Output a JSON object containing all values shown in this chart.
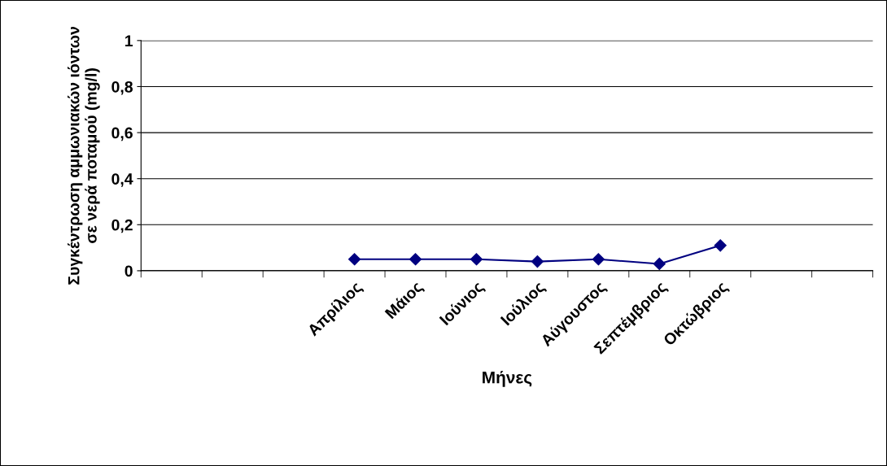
{
  "chart_data": {
    "type": "line",
    "xlabel": "Μήνες",
    "ylabel": "Συγκέντρωση αμμωνιακών ιόντων\nσε νερά ποταμού (mg/l)",
    "categories": [
      null,
      null,
      null,
      "Απρίλιος",
      "Μάιος",
      "Ιούνιος",
      "Ιούλιος",
      "Αύγουστος",
      "Σεπτέμβριος",
      "Οκτώβριος",
      null,
      null
    ],
    "series": [
      {
        "color": "#000080",
        "values": [
          null,
          null,
          null,
          0.05,
          0.05,
          0.05,
          0.04,
          0.05,
          0.03,
          0.11,
          null,
          null
        ]
      }
    ],
    "ylim": [
      0,
      1
    ],
    "yticks": [
      0,
      {
        "value": 0.2,
        "label": "0,2"
      },
      {
        "value": 0.4,
        "label": "0,4"
      },
      {
        "value": 0.6,
        "label": "0,6"
      },
      {
        "value": 0.8,
        "label": "0,8"
      },
      1
    ],
    "grid": "y",
    "marker": "diamond",
    "line_style": "solid"
  }
}
